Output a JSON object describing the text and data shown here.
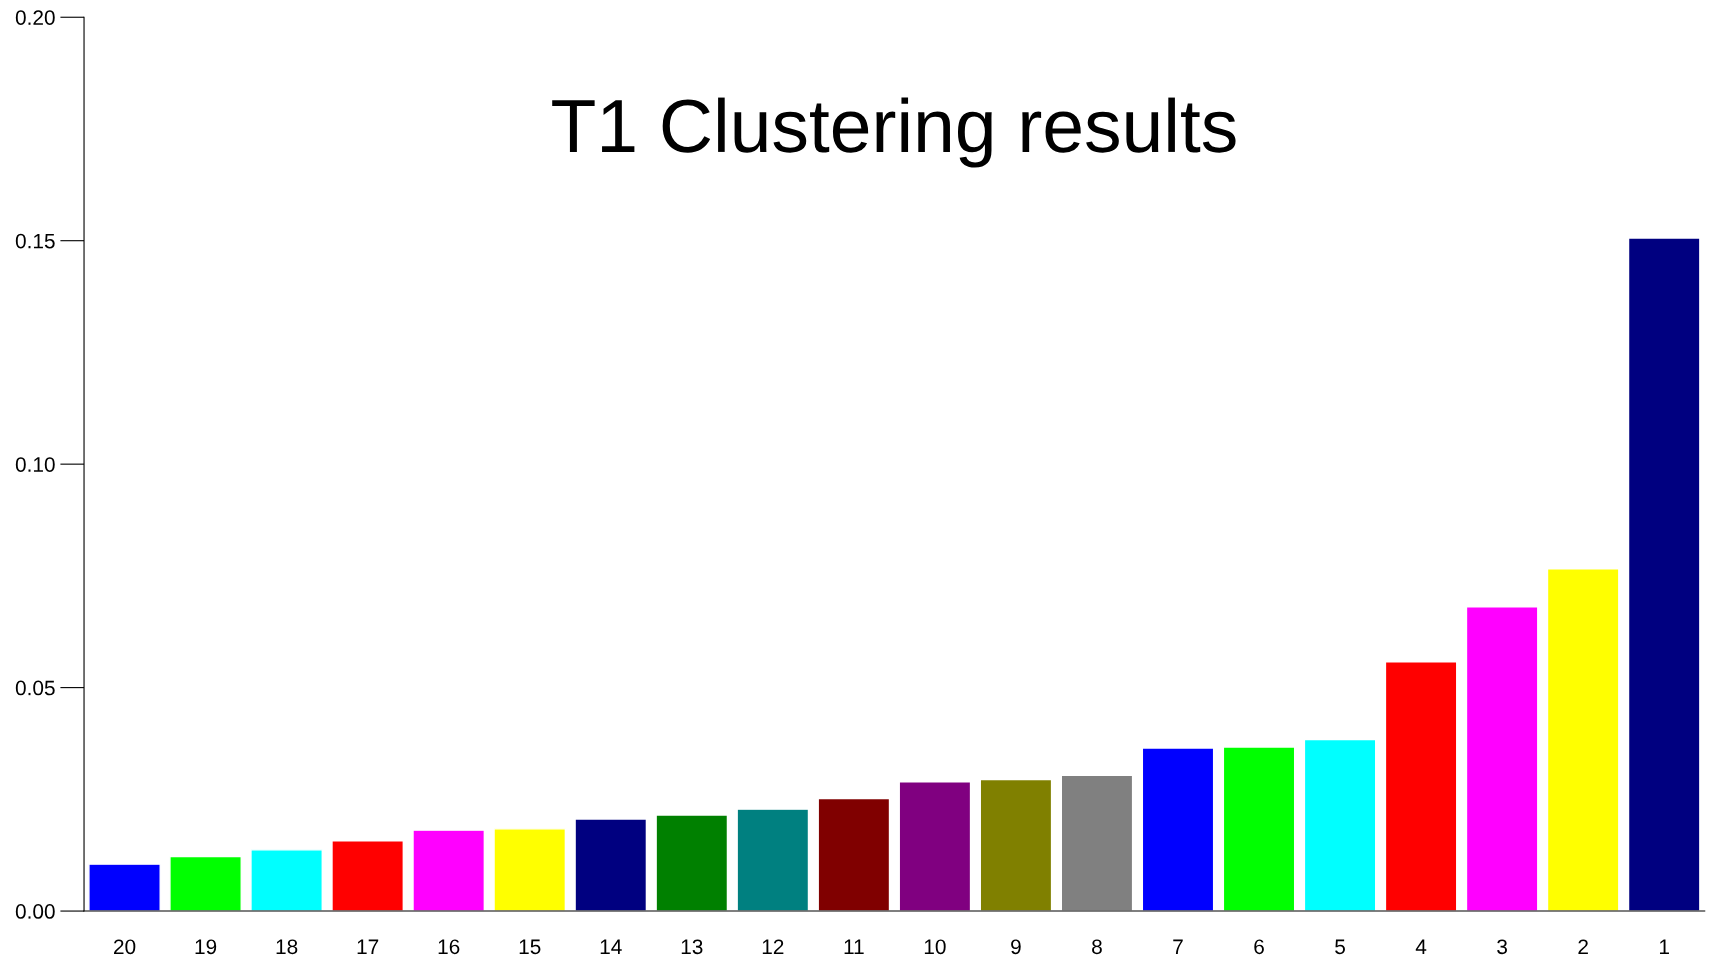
{
  "chart_data": {
    "type": "bar",
    "title": "T1 Clustering results",
    "categories": [
      "20",
      "19",
      "18",
      "17",
      "16",
      "15",
      "14",
      "13",
      "12",
      "11",
      "10",
      "9",
      "8",
      "7",
      "6",
      "5",
      "4",
      "3",
      "2",
      "1"
    ],
    "values": [
      0.0105,
      0.0122,
      0.0137,
      0.0157,
      0.0181,
      0.0184,
      0.0206,
      0.0215,
      0.0228,
      0.0252,
      0.0289,
      0.0294,
      0.0304,
      0.0365,
      0.0367,
      0.0384,
      0.0558,
      0.0681,
      0.0766,
      0.1506
    ],
    "colors": [
      "#0000ff",
      "#00ff00",
      "#00ffff",
      "#ff0000",
      "#ff00ff",
      "#ffff00",
      "#000080",
      "#008000",
      "#008080",
      "#800000",
      "#800080",
      "#808000",
      "#808080",
      "#0000ff",
      "#00ff00",
      "#00ffff",
      "#ff0000",
      "#ff00ff",
      "#ffff00",
      "#000080"
    ],
    "ylim": [
      0,
      0.2
    ],
    "yticks": [
      {
        "value": 0,
        "label": "0.00"
      },
      {
        "value": 0.05,
        "label": "0.05"
      },
      {
        "value": 0.1,
        "label": "0.10"
      },
      {
        "value": 0.15,
        "label": "0.15"
      },
      {
        "value": 0.2,
        "label": "0.20"
      }
    ],
    "grid": false
  }
}
